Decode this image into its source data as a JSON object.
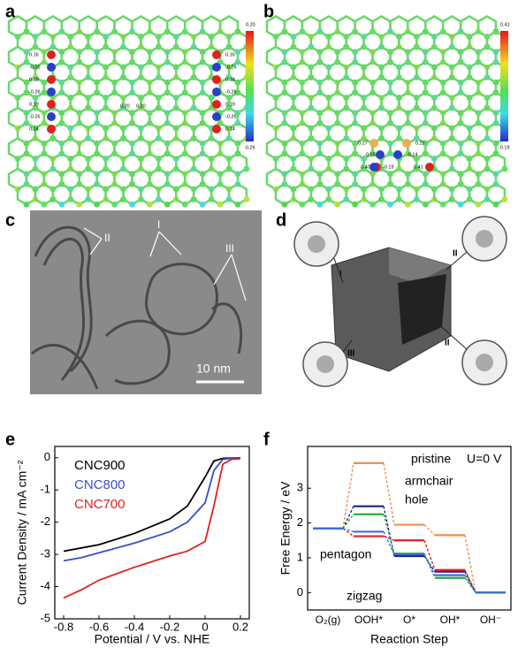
{
  "figure": {
    "a": {
      "letter": "a",
      "colorbar": [
        "0.20",
        "-0.26"
      ],
      "left_labels": [
        "0.16",
        "-0.26",
        "0.18",
        "-0.26",
        "0.19",
        "-0.26",
        "0.14"
      ],
      "right_labels": [
        "0.16",
        "-0.26",
        "0.18",
        "-0.26",
        "0.19",
        "-0.26",
        "0.14"
      ],
      "center_labels": [
        "0.20",
        "0.20"
      ]
    },
    "b": {
      "letter": "b",
      "colorbar": [
        "0.41",
        "-0.19"
      ],
      "labels": [
        "0.27",
        "0.27",
        "-0.15",
        "-0.14",
        "0.40",
        "-0.19",
        "0.41"
      ]
    },
    "c": {
      "letter": "c",
      "labels": [
        "II",
        "I",
        "III"
      ],
      "scale": "10 nm"
    },
    "d": {
      "letter": "d",
      "labels": [
        "I",
        "II",
        "II",
        "III"
      ]
    }
  },
  "chart_data": [
    {
      "type": "line",
      "letter": "e",
      "xlabel": "Potential / V vs. NHE",
      "ylabel": "Current Density / mA cm⁻²",
      "x": [
        -0.8,
        -0.7,
        -0.6,
        -0.4,
        -0.2,
        -0.1,
        0,
        0.05,
        0.1,
        0.15,
        0.2
      ],
      "series": [
        {
          "name": "CNC900",
          "color": "#000000",
          "values": [
            -2.9,
            -2.8,
            -2.7,
            -2.35,
            -1.9,
            -1.5,
            -0.6,
            -0.1,
            -0.02,
            -0.01,
            0
          ]
        },
        {
          "name": "CNC800",
          "color": "#3a4fc4",
          "values": [
            -3.2,
            -3.1,
            -2.95,
            -2.65,
            -2.3,
            -2.0,
            -1.4,
            -0.4,
            -0.05,
            -0.02,
            0
          ]
        },
        {
          "name": "CNC700",
          "color": "#e02020",
          "values": [
            -4.35,
            -4.1,
            -3.8,
            -3.4,
            -3.05,
            -2.9,
            -2.6,
            -1.5,
            -0.2,
            -0.05,
            -0.03
          ]
        }
      ],
      "xlim": [
        -0.85,
        0.25
      ],
      "xticks": [
        -0.8,
        -0.6,
        -0.4,
        -0.2,
        0.0,
        0.2
      ],
      "ylim": [
        -5,
        0.35
      ],
      "yticks": [
        0,
        -1,
        -2,
        -3,
        -4,
        -5
      ]
    },
    {
      "type": "step",
      "letter": "f",
      "xlabel": "Reaction Step",
      "ylabel": "Free Energy / eV",
      "annotation": "U=0 V",
      "categories": [
        "O₂(g)",
        "OOH*",
        "O*",
        "OH*",
        "OH⁻"
      ],
      "series": [
        {
          "name": "pristine",
          "color": "#f0904a",
          "values": [
            1.84,
            3.72,
            1.95,
            1.65,
            0
          ]
        },
        {
          "name": "armchair",
          "color": "#1a237e",
          "values": [
            1.84,
            2.48,
            1.05,
            0.6,
            0
          ]
        },
        {
          "name": "hole",
          "color": "#2eaa3a",
          "values": [
            1.84,
            2.25,
            1.12,
            0.42,
            0
          ]
        },
        {
          "name": "pentagon",
          "color": "#e02020",
          "values": [
            1.84,
            1.62,
            1.5,
            0.65,
            0
          ]
        },
        {
          "name": "zigzag",
          "color": "#3a6fd8",
          "values": [
            1.84,
            1.75,
            1.1,
            0.5,
            0
          ]
        }
      ],
      "ylim": [
        -0.5,
        4.2
      ],
      "yticks": [
        0,
        1,
        2,
        3
      ]
    }
  ]
}
